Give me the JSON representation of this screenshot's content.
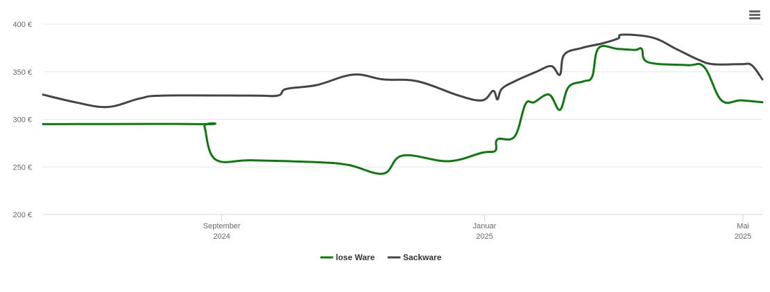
{
  "chart_data": {
    "type": "line",
    "y_ticks": [
      "200 €",
      "250 €",
      "300 €",
      "350 €",
      "400 €"
    ],
    "y_tick_values": [
      200,
      250,
      300,
      350,
      400
    ],
    "ylim": [
      200,
      400
    ],
    "xlim": [
      "2024-06-10",
      "2025-05-10"
    ],
    "x_ticks": [
      {
        "date": "2024-09-01",
        "line1": "September",
        "line2": "2024"
      },
      {
        "date": "2025-01-01",
        "line1": "Januar",
        "line2": "2025"
      },
      {
        "date": "2025-05-01",
        "line1": "Mai",
        "line2": "2025"
      }
    ],
    "grid": true,
    "legend_position": "bottom-center",
    "series": [
      {
        "name": "lose Ware",
        "color": "#0a7b0a",
        "points": [
          [
            "2024-06-10",
            295
          ],
          [
            "2024-08-23",
            295
          ],
          [
            "2024-08-24",
            292
          ],
          [
            "2024-08-29",
            258
          ],
          [
            "2024-09-15",
            257
          ],
          [
            "2024-10-15",
            255
          ],
          [
            "2024-10-30",
            252
          ],
          [
            "2024-11-15",
            243
          ],
          [
            "2024-11-24",
            262
          ],
          [
            "2024-12-15",
            256
          ],
          [
            "2024-12-31",
            265
          ],
          [
            "2025-01-06",
            267
          ],
          [
            "2025-01-07",
            279
          ],
          [
            "2025-01-15",
            282
          ],
          [
            "2025-01-20",
            316
          ],
          [
            "2025-01-24",
            318
          ],
          [
            "2025-01-31",
            326
          ],
          [
            "2025-02-05",
            310
          ],
          [
            "2025-02-09",
            334
          ],
          [
            "2025-02-16",
            340
          ],
          [
            "2025-02-20",
            345
          ],
          [
            "2025-02-23",
            375
          ],
          [
            "2025-03-04",
            374
          ],
          [
            "2025-03-12",
            373
          ],
          [
            "2025-03-15",
            374
          ],
          [
            "2025-03-18",
            360
          ],
          [
            "2025-04-05",
            357
          ],
          [
            "2025-04-13",
            355
          ],
          [
            "2025-04-21",
            320
          ],
          [
            "2025-04-30",
            320
          ],
          [
            "2025-05-10",
            318
          ]
        ]
      },
      {
        "name": "Sackware",
        "color": "#434348",
        "points": [
          [
            "2024-06-10",
            326
          ],
          [
            "2024-06-25",
            318
          ],
          [
            "2024-07-10",
            313
          ],
          [
            "2024-07-25",
            322
          ],
          [
            "2024-08-05",
            325
          ],
          [
            "2024-09-15",
            325
          ],
          [
            "2024-09-27",
            325
          ],
          [
            "2024-10-01",
            332
          ],
          [
            "2024-10-15",
            336
          ],
          [
            "2024-11-01",
            347
          ],
          [
            "2024-11-15",
            342
          ],
          [
            "2024-12-01",
            340
          ],
          [
            "2024-12-20",
            325
          ],
          [
            "2024-12-31",
            320
          ],
          [
            "2025-01-05",
            330
          ],
          [
            "2025-01-07",
            321
          ],
          [
            "2025-01-09",
            332
          ],
          [
            "2025-01-15",
            340
          ],
          [
            "2025-01-25",
            350
          ],
          [
            "2025-02-01",
            356
          ],
          [
            "2025-02-05",
            347
          ],
          [
            "2025-02-07",
            368
          ],
          [
            "2025-02-15",
            375
          ],
          [
            "2025-02-25",
            380
          ],
          [
            "2025-03-04",
            385
          ],
          [
            "2025-03-06",
            389
          ],
          [
            "2025-03-20",
            386
          ],
          [
            "2025-03-31",
            374
          ],
          [
            "2025-04-10",
            363
          ],
          [
            "2025-04-17",
            358
          ],
          [
            "2025-04-30",
            358
          ],
          [
            "2025-05-05",
            357
          ],
          [
            "2025-05-10",
            342
          ]
        ]
      }
    ]
  }
}
